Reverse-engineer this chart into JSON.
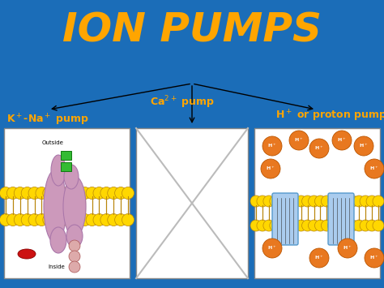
{
  "title": "ION PUMPS",
  "title_color": "#FFA500",
  "title_fontsize": 36,
  "title_fontweight": "bold",
  "bg_color": "#1B6DB8",
  "label1_full": "K$^+$-Na$^+$ pump",
  "label2": "Ca$^{2+}$ pump",
  "label3": "H$^+$ or proton pump",
  "label_color": "#FFA500",
  "label_fontsize": 9,
  "membrane_yellow": "#FFD700",
  "membrane_line": "#B8860B",
  "pump_purple": "#CC99BB",
  "pump_blue": "#AACCEE",
  "ion_orange": "#E87820",
  "outside_text": "Outside",
  "inside_text": "Inside"
}
